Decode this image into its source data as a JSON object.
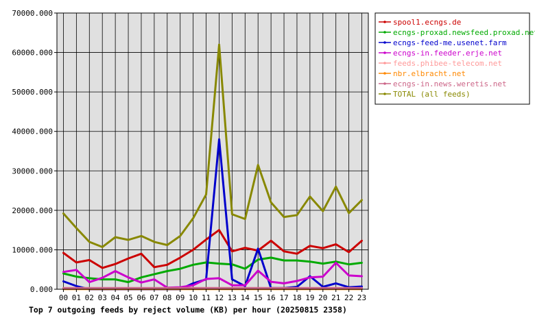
{
  "chart_data": {
    "type": "line",
    "title": "Top 7 outgoing feeds by reject volume (KB) per hour (20250815 2358)",
    "xlabel": "",
    "ylabel": "",
    "categories": [
      "00",
      "01",
      "02",
      "03",
      "04",
      "05",
      "06",
      "07",
      "08",
      "09",
      "10",
      "11",
      "12",
      "13",
      "14",
      "15",
      "16",
      "17",
      "18",
      "19",
      "20",
      "21",
      "22",
      "23"
    ],
    "ylim": [
      0,
      70000
    ],
    "yticks": [
      0,
      10000,
      20000,
      30000,
      40000,
      50000,
      60000,
      70000
    ],
    "ytick_labels": [
      "0.000",
      "10000.000",
      "20000.000",
      "30000.000",
      "40000.000",
      "50000.000",
      "60000.000",
      "70000.000"
    ],
    "grid": true,
    "legend_position": "right",
    "series": [
      {
        "name": "spool1.ecngs.de",
        "color": "#cc0000",
        "values": [
          9200,
          6800,
          7400,
          5400,
          6400,
          7800,
          9000,
          5600,
          6200,
          8000,
          10000,
          12600,
          15000,
          9600,
          10500,
          9800,
          12300,
          9600,
          9000,
          11000,
          10400,
          11400,
          9400,
          12300
        ]
      },
      {
        "name": "ecngs-proxad.newsfeed.proxad.net",
        "color": "#00aa00",
        "values": [
          4000,
          3200,
          2800,
          2500,
          2500,
          1800,
          3000,
          3800,
          4600,
          5200,
          6200,
          6800,
          6500,
          6300,
          5200,
          7500,
          8000,
          7300,
          7300,
          7000,
          6500,
          7000,
          6300,
          6700
        ]
      },
      {
        "name": "ecngs-feed-me.usenet.farm",
        "color": "#0000cc",
        "values": [
          2000,
          800,
          0,
          0,
          0,
          0,
          0,
          0,
          0,
          0,
          1500,
          2500,
          38000,
          2500,
          800,
          10300,
          300,
          300,
          600,
          3300,
          600,
          1500,
          500,
          700
        ]
      },
      {
        "name": "ecngs-in.feeder.erje.net",
        "color": "#cc00cc",
        "values": [
          4400,
          4900,
          1800,
          2900,
          4600,
          3000,
          1700,
          2500,
          400,
          500,
          1000,
          2600,
          2800,
          1000,
          1000,
          4700,
          1900,
          1500,
          2100,
          3000,
          3200,
          6700,
          3500,
          3300
        ]
      },
      {
        "name": "feeds.phibee-telecom.net",
        "color": "#ff9999",
        "values": [
          150,
          150,
          150,
          150,
          150,
          150,
          150,
          150,
          150,
          150,
          150,
          150,
          150,
          150,
          150,
          150,
          150,
          150,
          150,
          150,
          150,
          150,
          150,
          150
        ]
      },
      {
        "name": "nbr.elbracht.net",
        "color": "#ff8800",
        "values": [
          50,
          50,
          50,
          50,
          50,
          50,
          50,
          50,
          50,
          50,
          50,
          50,
          50,
          50,
          50,
          50,
          50,
          50,
          50,
          50,
          50,
          50,
          50,
          50
        ]
      },
      {
        "name": "ecngs-in.news.weretis.net",
        "color": "#cc6688",
        "values": [
          300,
          300,
          300,
          300,
          300,
          300,
          300,
          300,
          300,
          300,
          300,
          300,
          300,
          300,
          300,
          300,
          300,
          300,
          300,
          300,
          300,
          300,
          300,
          300
        ]
      },
      {
        "name": "TOTAL (all feeds)",
        "color": "#888800",
        "values": [
          19200,
          15500,
          12000,
          10700,
          13200,
          12500,
          13500,
          12000,
          11200,
          13500,
          18000,
          24000,
          62000,
          19000,
          17800,
          31500,
          22000,
          18300,
          18800,
          23500,
          19800,
          26000,
          19300,
          22600
        ]
      }
    ]
  }
}
